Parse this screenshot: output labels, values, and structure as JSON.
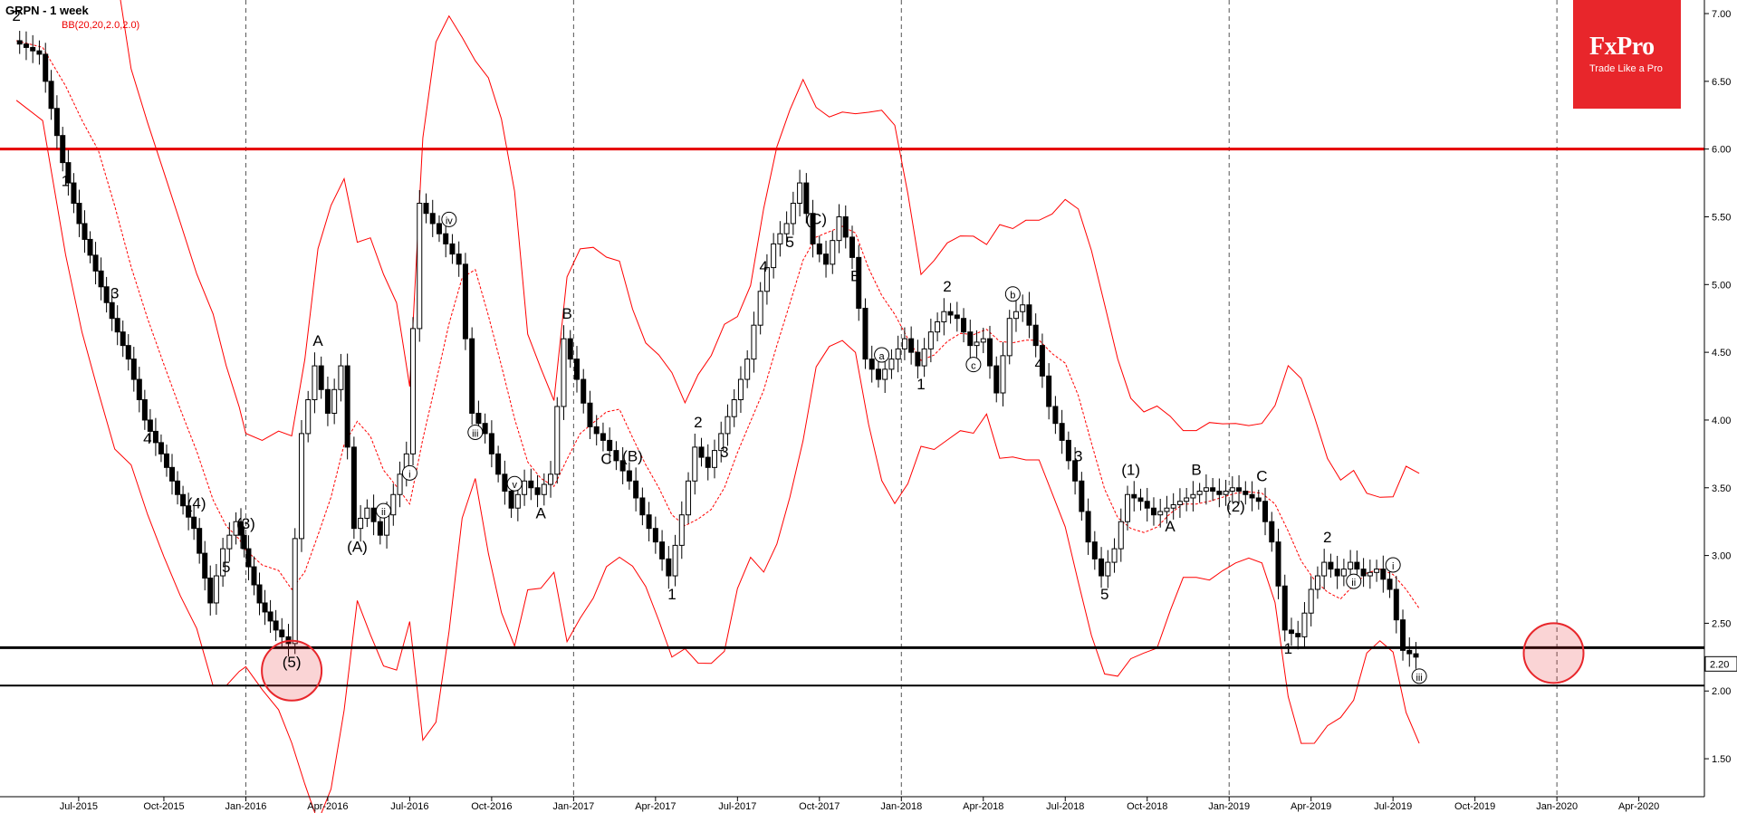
{
  "header": {
    "symbol_title": "GRPN - 1 week",
    "indicator": "BB(20,20,2.0,2.0)"
  },
  "logo": {
    "brand": "FxPro",
    "tagline": "Trade Like a Pro",
    "color": "#e8262b"
  },
  "colors": {
    "band": "#ff0000",
    "resistance": "#e50000",
    "support": "#000000",
    "circle": "#e8262b"
  },
  "chart_data": {
    "type": "candlestick",
    "title": "GRPN - 1 week",
    "ylim": [
      1.3,
      7.0
    ],
    "y_ticks": [
      "7.00",
      "6.50",
      "6.00",
      "5.50",
      "5.00",
      "4.50",
      "4.00",
      "3.50",
      "3.00",
      "2.50",
      "2.00",
      "1.50"
    ],
    "x_ticks": [
      {
        "t": 2015.49,
        "label": "Jul-2015"
      },
      {
        "t": 2015.75,
        "label": "Oct-2015"
      },
      {
        "t": 2016.0,
        "label": "Jan-2016"
      },
      {
        "t": 2016.25,
        "label": "Apr-2016"
      },
      {
        "t": 2016.5,
        "label": "Jul-2016"
      },
      {
        "t": 2016.75,
        "label": "Oct-2016"
      },
      {
        "t": 2017.0,
        "label": "Jan-2017"
      },
      {
        "t": 2017.25,
        "label": "Apr-2017"
      },
      {
        "t": 2017.5,
        "label": "Jul-2017"
      },
      {
        "t": 2017.75,
        "label": "Oct-2017"
      },
      {
        "t": 2018.0,
        "label": "Jan-2018"
      },
      {
        "t": 2018.25,
        "label": "Apr-2018"
      },
      {
        "t": 2018.5,
        "label": "Jul-2018"
      },
      {
        "t": 2018.75,
        "label": "Oct-2018"
      },
      {
        "t": 2019.0,
        "label": "Jan-2019"
      },
      {
        "t": 2019.25,
        "label": "Apr-2019"
      },
      {
        "t": 2019.5,
        "label": "Jul-2019"
      },
      {
        "t": 2019.75,
        "label": "Oct-2019"
      },
      {
        "t": 2020.0,
        "label": "Jan-2020"
      },
      {
        "t": 2020.25,
        "label": "Apr-2020"
      }
    ],
    "year_dividers": [
      2016.0,
      2017.0,
      2018.0,
      2019.0,
      2020.0
    ],
    "horizontal_levels": [
      {
        "name": "resistance",
        "value": 6.0
      },
      {
        "name": "support-upper",
        "value": 2.32
      },
      {
        "name": "support-lower",
        "value": 2.04
      }
    ],
    "current_price": "2.20",
    "highlight_circles": [
      {
        "t": 2016.14,
        "price": 2.15
      },
      {
        "t": 2019.99,
        "price": 2.28
      }
    ],
    "series": [
      {
        "name": "GRPN",
        "points": [
          [
            2015.3,
            6.8
          ],
          [
            2015.38,
            6.7
          ],
          [
            2015.45,
            5.9
          ],
          [
            2015.5,
            5.45
          ],
          [
            2015.55,
            5.1
          ],
          [
            2015.6,
            4.75
          ],
          [
            2015.65,
            4.45
          ],
          [
            2015.7,
            4.0
          ],
          [
            2015.75,
            3.75
          ],
          [
            2015.8,
            3.45
          ],
          [
            2015.85,
            3.2
          ],
          [
            2015.9,
            2.65
          ],
          [
            2015.94,
            3.05
          ],
          [
            2015.98,
            3.25
          ],
          [
            2016.0,
            3.05
          ],
          [
            2016.05,
            2.65
          ],
          [
            2016.1,
            2.45
          ],
          [
            2016.14,
            2.35
          ],
          [
            2016.18,
            3.9
          ],
          [
            2016.22,
            4.4
          ],
          [
            2016.26,
            4.05
          ],
          [
            2016.3,
            4.4
          ],
          [
            2016.34,
            3.2
          ],
          [
            2016.38,
            3.35
          ],
          [
            2016.42,
            3.15
          ],
          [
            2016.46,
            3.45
          ],
          [
            2016.5,
            3.75
          ],
          [
            2016.54,
            5.6
          ],
          [
            2016.58,
            5.45
          ],
          [
            2016.62,
            5.3
          ],
          [
            2016.66,
            5.15
          ],
          [
            2016.7,
            4.05
          ],
          [
            2016.74,
            3.9
          ],
          [
            2016.78,
            3.6
          ],
          [
            2016.82,
            3.35
          ],
          [
            2016.86,
            3.55
          ],
          [
            2016.9,
            3.45
          ],
          [
            2016.94,
            3.6
          ],
          [
            2016.98,
            4.6
          ],
          [
            2017.02,
            4.3
          ],
          [
            2017.06,
            3.95
          ],
          [
            2017.1,
            3.85
          ],
          [
            2017.14,
            3.7
          ],
          [
            2017.18,
            3.55
          ],
          [
            2017.22,
            3.3
          ],
          [
            2017.26,
            3.1
          ],
          [
            2017.3,
            2.85
          ],
          [
            2017.34,
            3.3
          ],
          [
            2017.38,
            3.8
          ],
          [
            2017.42,
            3.65
          ],
          [
            2017.46,
            3.9
          ],
          [
            2017.5,
            4.15
          ],
          [
            2017.54,
            4.45
          ],
          [
            2017.58,
            4.95
          ],
          [
            2017.62,
            5.3
          ],
          [
            2017.66,
            5.45
          ],
          [
            2017.7,
            5.75
          ],
          [
            2017.74,
            5.3
          ],
          [
            2017.78,
            5.15
          ],
          [
            2017.82,
            5.5
          ],
          [
            2017.86,
            5.2
          ],
          [
            2017.9,
            4.45
          ],
          [
            2017.94,
            4.3
          ],
          [
            2017.98,
            4.45
          ],
          [
            2018.02,
            4.6
          ],
          [
            2018.06,
            4.4
          ],
          [
            2018.1,
            4.65
          ],
          [
            2018.14,
            4.8
          ],
          [
            2018.18,
            4.75
          ],
          [
            2018.22,
            4.55
          ],
          [
            2018.26,
            4.6
          ],
          [
            2018.3,
            4.2
          ],
          [
            2018.34,
            4.75
          ],
          [
            2018.38,
            4.85
          ],
          [
            2018.42,
            4.55
          ],
          [
            2018.46,
            4.1
          ],
          [
            2018.5,
            3.85
          ],
          [
            2018.54,
            3.55
          ],
          [
            2018.58,
            3.1
          ],
          [
            2018.62,
            2.85
          ],
          [
            2018.66,
            3.05
          ],
          [
            2018.7,
            3.45
          ],
          [
            2018.74,
            3.4
          ],
          [
            2018.78,
            3.3
          ],
          [
            2018.82,
            3.35
          ],
          [
            2018.86,
            3.4
          ],
          [
            2018.9,
            3.45
          ],
          [
            2018.94,
            3.5
          ],
          [
            2018.98,
            3.45
          ],
          [
            2019.02,
            3.5
          ],
          [
            2019.06,
            3.45
          ],
          [
            2019.1,
            3.4
          ],
          [
            2019.14,
            3.1
          ],
          [
            2019.18,
            2.45
          ],
          [
            2019.22,
            2.4
          ],
          [
            2019.26,
            2.75
          ],
          [
            2019.3,
            2.95
          ],
          [
            2019.34,
            2.85
          ],
          [
            2019.38,
            2.95
          ],
          [
            2019.42,
            2.85
          ],
          [
            2019.46,
            2.9
          ],
          [
            2019.5,
            2.75
          ],
          [
            2019.54,
            2.3
          ],
          [
            2019.58,
            2.25
          ]
        ]
      }
    ],
    "wave_labels": [
      "2",
      "1",
      "3",
      "4",
      "(4)",
      "5",
      "(3)",
      "(5)",
      "A",
      "(A)",
      "ii",
      "i",
      "iv",
      "iii",
      "v",
      "A",
      "B",
      "C",
      "(B)",
      "1",
      "2",
      "3",
      "4",
      "5",
      "(C)",
      "B",
      "a",
      "1",
      "2",
      "c",
      "b",
      "4",
      "3",
      "5",
      "(1)",
      "A",
      "B",
      "(2)",
      "C",
      "1",
      "2",
      "ii",
      "i",
      "iii"
    ]
  }
}
